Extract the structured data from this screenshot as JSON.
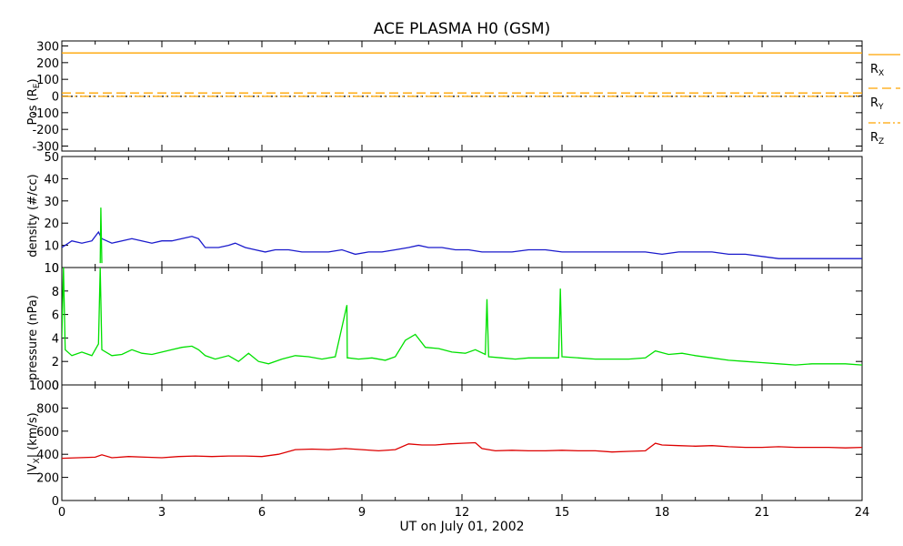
{
  "chart_data": {
    "type": "line",
    "title": "ACE PLASMA H0 (GSM)",
    "xlabel": "UT on July 01, 2002",
    "xlim": [
      0,
      24
    ],
    "xticks": [
      0,
      3,
      6,
      9,
      12,
      15,
      18,
      21,
      24
    ],
    "xtick_labels": [
      "0",
      "3",
      "6",
      "9",
      "12",
      "15",
      "18",
      "21",
      "24"
    ],
    "panels": [
      {
        "id": "pos",
        "ylabel": "Pos (R",
        "ylabel_sub": "E",
        "ylabel_end": ")",
        "ylim": [
          -330,
          330
        ],
        "yticks": [
          300,
          200,
          100,
          0,
          -100,
          -200,
          -300
        ],
        "ytick_labels": [
          "300",
          "200",
          "100",
          "0",
          "-100",
          "-200",
          "-300"
        ],
        "series": [
          {
            "name": "R",
            "sub": "X",
            "color": "#ffa500",
            "style": "solid",
            "x": [
              0,
              24
            ],
            "values": [
              258,
              258
            ]
          },
          {
            "name": "R",
            "sub": "Y",
            "color": "#ffa500",
            "style": "dashed",
            "x": [
              0,
              24
            ],
            "values": [
              18,
              18
            ]
          },
          {
            "name": "R",
            "sub": "Z",
            "color": "#ffa500",
            "style": "dashdot",
            "x": [
              0,
              24
            ],
            "values": [
              -2,
              -2
            ]
          }
        ],
        "extra_lines": [
          {
            "color": "#000000",
            "style": "dotted",
            "x": [
              0,
              24
            ],
            "values": [
              -2,
              -2
            ]
          }
        ]
      },
      {
        "id": "density",
        "ylabel": "density (#/cc)",
        "ylim": [
          0,
          50
        ],
        "yticks": [
          50,
          40,
          30,
          20,
          10,
          0
        ],
        "ytick_labels": [
          "50",
          "40",
          "30",
          "20",
          "10",
          "0"
        ],
        "series": [
          {
            "color": "#1a1acc",
            "x": [
              0,
              0.3,
              0.6,
              0.9,
              1.1,
              1.2,
              1.5,
              1.8,
              2.1,
              2.4,
              2.7,
              3.0,
              3.3,
              3.6,
              3.9,
              4.1,
              4.3,
              4.7,
              5.0,
              5.2,
              5.5,
              5.8,
              6.1,
              6.4,
              6.8,
              7.2,
              7.6,
              8.0,
              8.4,
              8.8,
              9.2,
              9.6,
              10.0,
              10.4,
              10.7,
              11.0,
              11.4,
              11.8,
              12.2,
              12.6,
              13.0,
              13.5,
              14.0,
              14.5,
              15.0,
              15.5,
              16.0,
              16.5,
              17.0,
              17.5,
              18.0,
              18.5,
              19.0,
              19.5,
              20.0,
              20.5,
              21.0,
              21.5,
              22.0,
              22.5,
              23.0,
              23.5,
              24.0
            ],
            "values": [
              9,
              12,
              11,
              12,
              16,
              13,
              11,
              12,
              13,
              12,
              11,
              12,
              12,
              13,
              14,
              13,
              9,
              9,
              10,
              11,
              9,
              8,
              7,
              8,
              8,
              7,
              7,
              7,
              8,
              6,
              7,
              7,
              8,
              9,
              10,
              9,
              9,
              8,
              8,
              7,
              7,
              7,
              8,
              8,
              7,
              7,
              7,
              7,
              7,
              7,
              6,
              7,
              7,
              7,
              6,
              6,
              5,
              4,
              4,
              4,
              4,
              4,
              4
            ]
          },
          {
            "color": "#00e000",
            "x": [
              1.15,
              1.17,
              1.2
            ],
            "values": [
              2,
              27,
              2
            ]
          }
        ]
      },
      {
        "id": "pressure",
        "ylabel": "pressure (nPa)",
        "ylim": [
          0,
          10
        ],
        "yticks": [
          10,
          8,
          6,
          4,
          2,
          0
        ],
        "ytick_labels": [
          "10",
          "8",
          "6",
          "4",
          "2",
          "0"
        ],
        "series": [
          {
            "color": "#00e000",
            "x": [
              0,
              0.05,
              0.1,
              0.3,
              0.6,
              0.9,
              1.1,
              1.15,
              1.2,
              1.5,
              1.8,
              2.1,
              2.4,
              2.7,
              3.0,
              3.3,
              3.6,
              3.9,
              4.1,
              4.3,
              4.6,
              5.0,
              5.3,
              5.6,
              5.9,
              6.2,
              6.6,
              7.0,
              7.4,
              7.8,
              8.2,
              8.55,
              8.56,
              8.6,
              8.9,
              9.3,
              9.7,
              10.0,
              10.3,
              10.6,
              10.9,
              11.3,
              11.7,
              12.1,
              12.4,
              12.7,
              12.75,
              12.8,
              13.2,
              13.6,
              14.0,
              14.5,
              14.9,
              14.95,
              15.0,
              15.5,
              16.0,
              16.5,
              17.0,
              17.5,
              17.8,
              18.2,
              18.6,
              19.0,
              19.5,
              20.0,
              20.5,
              21.0,
              21.5,
              22.0,
              22.5,
              23.0,
              23.5,
              24.0
            ],
            "values": [
              4,
              10,
              3,
              2.5,
              2.8,
              2.5,
              3.5,
              10,
              3,
              2.5,
              2.6,
              3.0,
              2.7,
              2.6,
              2.8,
              3.0,
              3.2,
              3.3,
              3.0,
              2.5,
              2.2,
              2.5,
              2.0,
              2.7,
              2.0,
              1.8,
              2.2,
              2.5,
              2.4,
              2.2,
              2.4,
              6.8,
              2.3,
              2.3,
              2.2,
              2.3,
              2.1,
              2.4,
              3.8,
              4.3,
              3.2,
              3.1,
              2.8,
              2.7,
              3.0,
              2.6,
              7.3,
              2.4,
              2.3,
              2.2,
              2.3,
              2.3,
              2.3,
              8.2,
              2.4,
              2.3,
              2.2,
              2.2,
              2.2,
              2.3,
              2.9,
              2.6,
              2.7,
              2.5,
              2.3,
              2.1,
              2.0,
              1.9,
              1.8,
              1.7,
              1.8,
              1.8,
              1.8,
              1.7
            ]
          }
        ]
      },
      {
        "id": "vx",
        "ylabel": "|V",
        "ylabel_sub": "X",
        "ylabel_end": "| (km/s)",
        "ylim": [
          0,
          1000
        ],
        "yticks": [
          1000,
          800,
          600,
          400,
          200,
          0
        ],
        "ytick_labels": [
          "1000",
          "800",
          "600",
          "400",
          "200",
          "0"
        ],
        "series": [
          {
            "color": "#dd0000",
            "x": [
              0,
              0.5,
              1.0,
              1.2,
              1.5,
              2.0,
              2.5,
              3.0,
              3.5,
              4.0,
              4.5,
              5.0,
              5.5,
              6.0,
              6.5,
              7.0,
              7.5,
              8.0,
              8.5,
              9.0,
              9.5,
              10.0,
              10.4,
              10.8,
              11.2,
              11.6,
              12.0,
              12.4,
              12.6,
              13.0,
              13.5,
              14.0,
              14.5,
              15.0,
              15.5,
              16.0,
              16.5,
              17.0,
              17.5,
              17.8,
              18.0,
              18.5,
              19.0,
              19.5,
              20.0,
              20.5,
              21.0,
              21.5,
              22.0,
              22.5,
              23.0,
              23.5,
              24.0
            ],
            "values": [
              365,
              370,
              375,
              395,
              370,
              380,
              375,
              370,
              380,
              385,
              380,
              385,
              385,
              380,
              400,
              440,
              445,
              440,
              450,
              440,
              430,
              440,
              490,
              480,
              480,
              490,
              495,
              500,
              450,
              430,
              435,
              430,
              430,
              435,
              430,
              430,
              420,
              425,
              430,
              495,
              480,
              475,
              470,
              475,
              465,
              460,
              460,
              465,
              460,
              460,
              460,
              455,
              460
            ]
          }
        ]
      }
    ],
    "legend": {
      "position": "right of top panel",
      "entries": [
        {
          "label": "R",
          "sub": "X"
        },
        {
          "label": "R",
          "sub": "Y"
        },
        {
          "label": "R",
          "sub": "Z"
        }
      ]
    }
  }
}
